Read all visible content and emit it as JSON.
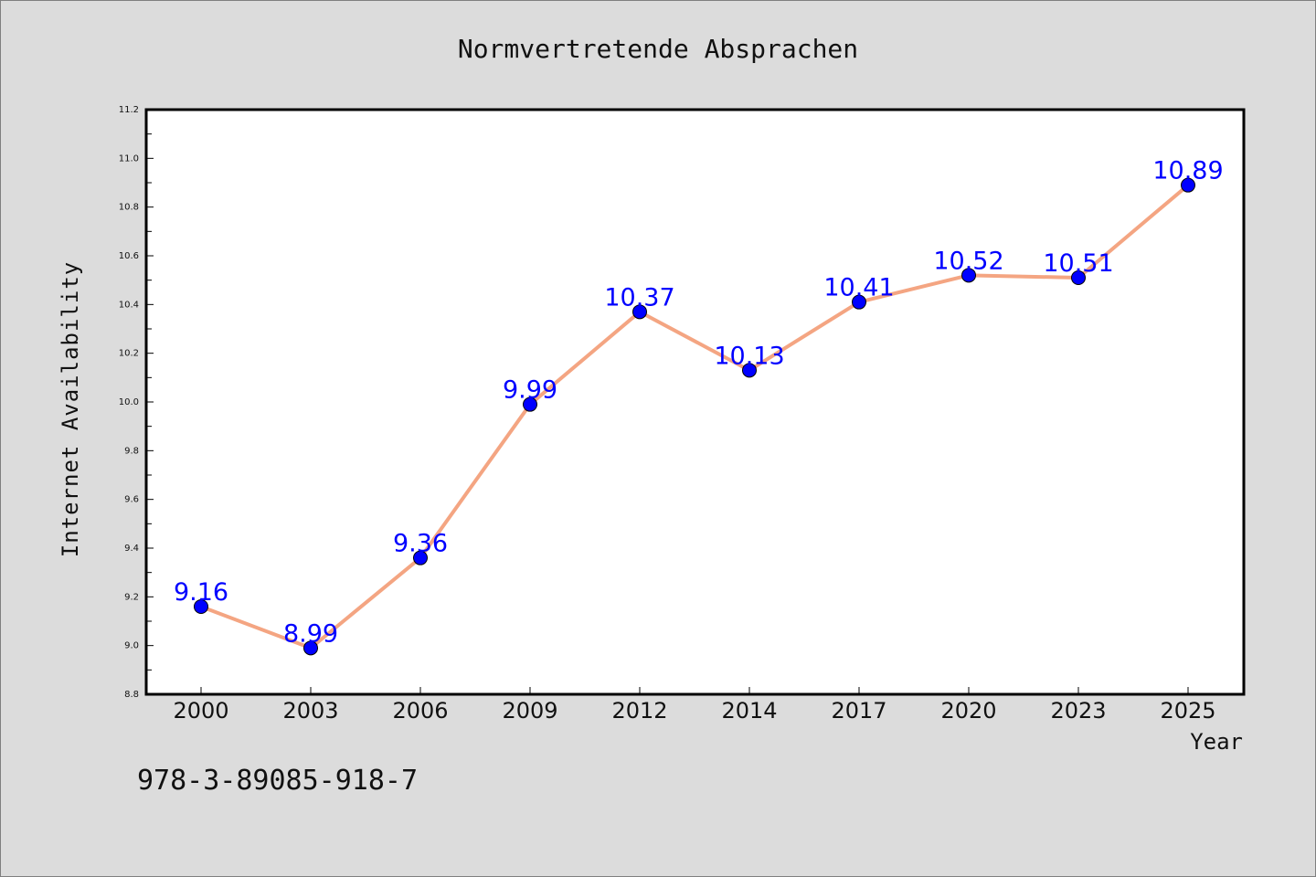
{
  "chart_data": {
    "type": "line",
    "title": "Normvertretende Absprachen",
    "xlabel": "Year",
    "ylabel": "Internet Availability",
    "categories": [
      "2000",
      "2003",
      "2006",
      "2009",
      "2012",
      "2014",
      "2017",
      "2020",
      "2023",
      "2025"
    ],
    "series": [
      {
        "values": [
          9.16,
          8.99,
          9.36,
          9.99,
          10.37,
          10.13,
          10.41,
          10.52,
          10.51,
          10.89
        ],
        "labels": [
          "9.16",
          "8.99",
          "9.36",
          "9.99",
          "10.37",
          "10.13",
          "10.41",
          "10.52",
          "10.51",
          "10.89"
        ]
      }
    ],
    "ylim": [
      8.8,
      11.2
    ],
    "yticks": [
      "8.8",
      "9.0",
      "9.2",
      "9.4",
      "9.6",
      "9.8",
      "10.0",
      "10.2",
      "10.4",
      "10.6",
      "10.8",
      "11.0",
      "11.2"
    ],
    "grid": false,
    "line_color": "#f4a582",
    "marker_color": "#0000ff",
    "label_color": "#0000ff"
  },
  "footer_text": "978-3-89085-918-7"
}
